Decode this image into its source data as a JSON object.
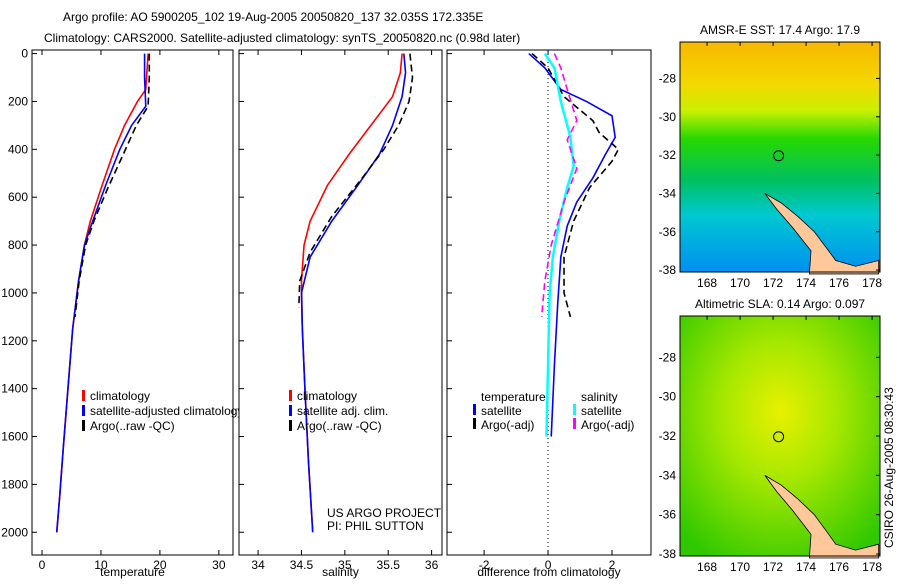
{
  "title_line1": "Argo profile: AO 5900205_102 19-Aug-2005 20050820_137 32.035S 172.335E",
  "title_line2": "Climatology: CARS2000. Satellite-adjusted climatology: synTS_20050820.nc (0.98d later)",
  "credit": "CSIRO 26-Aug-2005 08:30:43",
  "project_line1": "US ARGO PROJECT",
  "project_line2": "PI: PHIL SUTTON",
  "chart_data": [
    {
      "type": "line",
      "xlabel": "temperature",
      "ylabel": "",
      "xlim": [
        -1.7,
        32.4
      ],
      "ylim": [
        2095,
        -15
      ],
      "xticks": [
        0,
        10,
        20,
        30
      ],
      "yticks": [
        0,
        200,
        400,
        600,
        800,
        1000,
        1200,
        1400,
        1600,
        1800,
        2000
      ],
      "legend": [
        "climatology",
        "satellite-adjusted climatology",
        "Argo(..raw -QC)"
      ],
      "series": [
        {
          "name": "climatology",
          "color": "#ff0000",
          "dash": false,
          "x": [
            18,
            17.6,
            16.2,
            14,
            12.3,
            10.2,
            8.2,
            7.2,
            6.2,
            5.2,
            4.4,
            3.6,
            3.0,
            2.5
          ],
          "y": [
            0,
            150,
            200,
            300,
            400,
            550,
            700,
            800,
            950,
            1150,
            1400,
            1650,
            1850,
            2000
          ]
        },
        {
          "name": "satellite-adjusted climatology",
          "color": "#0000ff",
          "dash": false,
          "x": [
            17.4,
            17.4,
            17.6,
            15.2,
            13.2,
            10.8,
            8.6,
            7.2,
            6.2,
            5.2,
            4.4,
            3.6,
            3.0,
            2.5
          ],
          "y": [
            0,
            100,
            220,
            300,
            400,
            550,
            700,
            800,
            950,
            1150,
            1400,
            1650,
            1850,
            2000
          ]
        },
        {
          "name": "Argo(..raw -QC)",
          "color": "#000000",
          "dash": true,
          "x": [
            18.2,
            18.2,
            18.0,
            16.0,
            13.8,
            11.2,
            8.8,
            7.4,
            6.3,
            5.6
          ],
          "y": [
            0,
            100,
            220,
            300,
            420,
            560,
            700,
            800,
            950,
            1100
          ]
        }
      ]
    },
    {
      "type": "line",
      "xlabel": "salinity",
      "xlim": [
        33.78,
        36.12
      ],
      "ylim": [
        2095,
        -15
      ],
      "xticks": [
        34,
        34.5,
        35,
        35.5,
        36
      ],
      "legend": [
        "climatology",
        "satellite adj. clim.",
        "Argo(..raw -QC)"
      ],
      "series": [
        {
          "name": "climatology",
          "color": "#ff0000",
          "dash": false,
          "x": [
            35.66,
            35.64,
            35.55,
            35.3,
            35.05,
            34.8,
            34.6,
            34.53,
            34.5,
            34.51,
            34.54,
            34.58,
            34.63
          ],
          "y": [
            0,
            80,
            180,
            300,
            420,
            550,
            700,
            800,
            950,
            1150,
            1400,
            1700,
            2000
          ]
        },
        {
          "name": "satellite adj. clim.",
          "color": "#0000ff",
          "dash": false,
          "x": [
            35.68,
            35.7,
            35.66,
            35.55,
            35.4,
            35.15,
            34.85,
            34.6,
            34.5,
            34.51,
            34.54,
            34.58,
            34.63
          ],
          "y": [
            0,
            80,
            180,
            300,
            420,
            550,
            700,
            850,
            1000,
            1150,
            1400,
            1700,
            2000
          ]
        },
        {
          "name": "Argo(..raw -QC)",
          "color": "#000000",
          "dash": true,
          "x": [
            35.75,
            35.78,
            35.74,
            35.62,
            35.45,
            35.2,
            34.85,
            34.6,
            34.48,
            34.47
          ],
          "y": [
            0,
            100,
            200,
            300,
            400,
            520,
            680,
            830,
            950,
            1060
          ]
        }
      ]
    },
    {
      "type": "line",
      "xlabel": "difference from climatology",
      "xlim": [
        -3.16,
        3.22
      ],
      "ylim": [
        2095,
        -15
      ],
      "xticks": [
        -2,
        0,
        2
      ],
      "legend_groups": [
        {
          "heading": "temperature",
          "items": [
            "satellite",
            "Argo(-adj)"
          ]
        },
        {
          "heading": "salinity",
          "items": [
            "satellite",
            "Argo(-adj)"
          ]
        }
      ],
      "series": [
        {
          "name": "temperature satellite",
          "color": "#0000ff",
          "dash": false,
          "x": [
            -0.6,
            -0.1,
            0.4,
            1.2,
            2.0,
            2.1,
            1.8,
            1.4,
            0.9,
            0.6,
            0.4,
            0.3,
            0.2,
            0.1
          ],
          "y": [
            0,
            60,
            150,
            200,
            260,
            350,
            420,
            520,
            620,
            720,
            850,
            1050,
            1300,
            1600
          ]
        },
        {
          "name": "temperature Argo(-adj)",
          "color": "#000000",
          "dash": true,
          "x": [
            -0.5,
            0,
            0.5,
            1.4,
            1.6,
            2.2,
            2.0,
            1.3,
            0.8,
            0.5,
            0.5,
            0.7
          ],
          "y": [
            0,
            60,
            180,
            280,
            330,
            400,
            450,
            560,
            700,
            850,
            1000,
            1100
          ]
        },
        {
          "name": "salinity satellite",
          "color": "#00ffff",
          "dash": false,
          "x": [
            -0.1,
            0.2,
            0.4,
            0.7,
            0.8,
            0.6,
            0.35,
            0.15,
            0.05,
            0,
            -0.05
          ],
          "y": [
            0,
            60,
            200,
            350,
            470,
            560,
            700,
            850,
            1000,
            1300,
            1600
          ]
        },
        {
          "name": "salinity Argo(-adj)",
          "color": "#ff00ff",
          "dash": true,
          "x": [
            0.2,
            0.4,
            0.6,
            0.9,
            0.6,
            0.9,
            0.5,
            0.1,
            -0.1,
            -0.2
          ],
          "y": [
            0,
            60,
            150,
            280,
            360,
            480,
            620,
            800,
            950,
            1100
          ]
        }
      ]
    }
  ],
  "maps": [
    {
      "title": "AMSR-E SST: 17.4  Argo: 17.9",
      "lon_range": [
        166.36,
        178.48
      ],
      "lat_range": [
        -26.1,
        -38.1
      ],
      "lon_ticks": [
        168,
        170,
        172,
        174,
        176,
        178
      ],
      "lat_ticks": [
        -28,
        -30,
        -32,
        -34,
        -36,
        -38
      ],
      "marker": [
        172.335,
        -32.035
      ]
    },
    {
      "title": "Altimetric SLA: 0.14  Argo: 0.097",
      "lon_range": [
        166.36,
        178.48
      ],
      "lat_range": [
        -25.9,
        -38.1
      ],
      "lon_ticks": [
        168,
        170,
        172,
        174,
        176,
        178
      ],
      "lat_ticks": [
        -28,
        -30,
        -32,
        -34,
        -36,
        -38
      ],
      "marker": [
        172.335,
        -32.035
      ]
    }
  ]
}
